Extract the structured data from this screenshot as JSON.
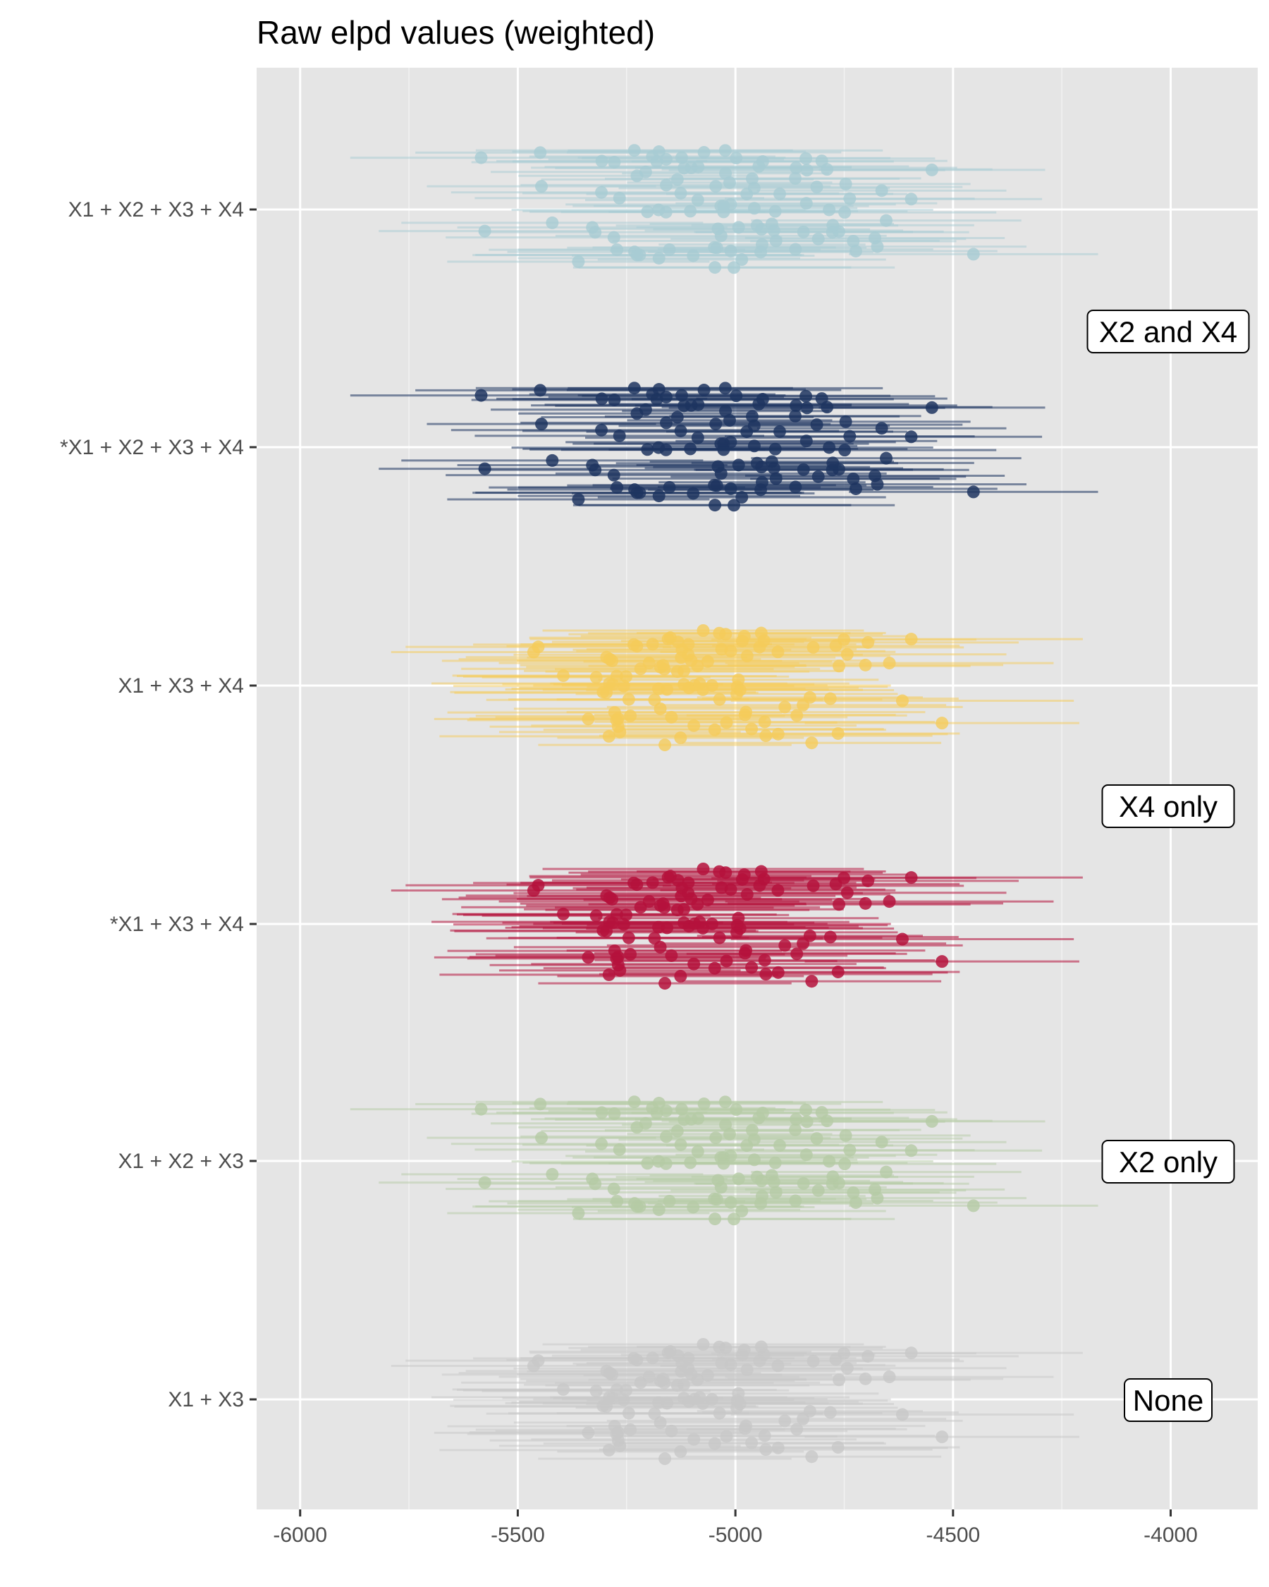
{
  "chart_data": {
    "type": "scatter",
    "title": "Raw elpd values (weighted)",
    "xlabel": "",
    "ylabel": "",
    "xlim": [
      -6100,
      -3800
    ],
    "x_ticks": [
      "-6000",
      "-5500",
      "-5000",
      "-4500",
      "-4000"
    ],
    "x_tick_values": [
      -6000,
      -5500,
      -5000,
      -4500,
      -4000
    ],
    "grid": true,
    "series": [
      {
        "name": "X1 + X2 + X3 + X4",
        "color": "#a8ccd3",
        "opacity": 0.5,
        "center": -5000,
        "spread": 190,
        "halfwidth": 310,
        "n": 100,
        "seed": 1
      },
      {
        "name": "*X1 + X2 + X3 + X4",
        "color": "#1e3560",
        "opacity": 0.55,
        "center": -5000,
        "spread": 190,
        "halfwidth": 310,
        "n": 100,
        "seed": 1
      },
      {
        "name": "X1 + X3 + X4",
        "color": "#f5cc5a",
        "opacity": 0.5,
        "center": -5050,
        "spread": 200,
        "halfwidth": 330,
        "n": 100,
        "seed": 2
      },
      {
        "name": "*X1 + X3 + X4",
        "color": "#b5123c",
        "opacity": 0.55,
        "center": -5050,
        "spread": 200,
        "halfwidth": 330,
        "n": 100,
        "seed": 2
      },
      {
        "name": "X1 + X2 + X3",
        "color": "#b5cba5",
        "opacity": 0.5,
        "center": -5000,
        "spread": 190,
        "halfwidth": 310,
        "n": 100,
        "seed": 1
      },
      {
        "name": "X1 + X3",
        "color": "#c8c8c8",
        "opacity": 0.5,
        "center": -5050,
        "spread": 200,
        "halfwidth": 330,
        "n": 100,
        "seed": 2
      }
    ],
    "annotations": [
      "X2 and X4",
      "X4 only",
      "X2 only",
      "None"
    ]
  }
}
